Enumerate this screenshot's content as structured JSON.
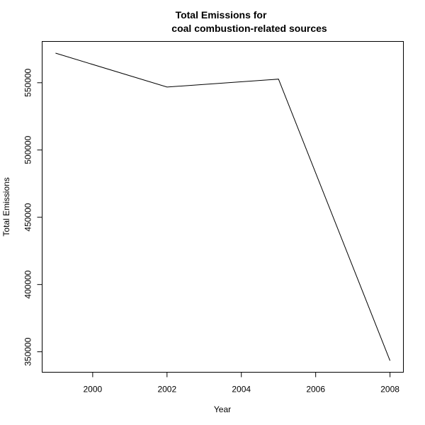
{
  "chart_data": {
    "type": "line",
    "title": [
      "Total Emissions for",
      "coal combustion-related sources"
    ],
    "xlabel": "Year",
    "ylabel": "Total Emissions",
    "x": [
      1999,
      2002,
      2005,
      2008
    ],
    "series": [
      {
        "values": [
          572000,
          546800,
          552700,
          343400
        ]
      }
    ],
    "xlim": [
      1998.64,
      2008.36
    ],
    "ylim": [
      334800,
      580700
    ],
    "xticks": [
      2000,
      2002,
      2004,
      2006,
      2008
    ],
    "yticks": [
      350000,
      400000,
      450000,
      500000,
      550000
    ],
    "grid": false,
    "line_color": "#000000"
  }
}
